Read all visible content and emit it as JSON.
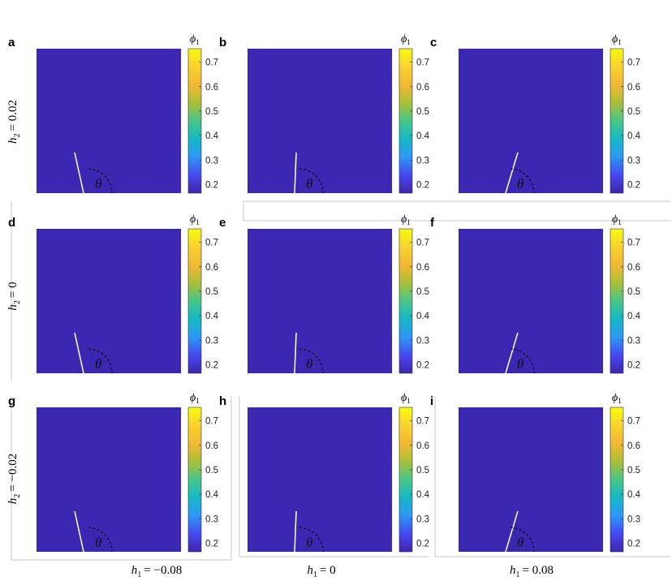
{
  "figure": {
    "colorbar": {
      "label": "ϕ1",
      "label_symbol": "ϕ",
      "label_subscript": "1",
      "ticks": [
        "0.7",
        "0.6",
        "0.5",
        "0.4",
        "0.3",
        "0.2"
      ],
      "colormap": [
        "#3e26a8",
        "#4748f2",
        "#2d97f5",
        "#15b8c8",
        "#47c78a",
        "#a9bf38",
        "#f3b934",
        "#f9d22f",
        "#f9fb0e"
      ],
      "background_color": "#3a28b2",
      "droplet_color": "#f6f043"
    },
    "angle_symbol": "θ",
    "row_labels": [
      {
        "lhs": "h",
        "sub": "2",
        "rhs": "= 0.02"
      },
      {
        "lhs": "h",
        "sub": "2",
        "rhs": "= 0"
      },
      {
        "lhs": "h",
        "sub": "2",
        "rhs": "= −0.02"
      }
    ],
    "col_labels": [
      {
        "lhs": "h",
        "sub": "1",
        "rhs": "= −0.08"
      },
      {
        "lhs": "h",
        "sub": "1",
        "rhs": "= 0"
      },
      {
        "lhs": "h",
        "sub": "1",
        "rhs": "= 0.08"
      }
    ],
    "panels": [
      {
        "letter": "a",
        "h1": "−0.08",
        "h2": "0.02"
      },
      {
        "letter": "b",
        "h1": "0",
        "h2": "0.02"
      },
      {
        "letter": "c",
        "h1": "0.08",
        "h2": "0.02"
      },
      {
        "letter": "d",
        "h1": "−0.08",
        "h2": "0"
      },
      {
        "letter": "e",
        "h1": "0",
        "h2": "0"
      },
      {
        "letter": "f",
        "h1": "0.08",
        "h2": "0"
      },
      {
        "letter": "g",
        "h1": "−0.08",
        "h2": "−0.02"
      },
      {
        "letter": "h",
        "h1": "0",
        "h2": "−0.02"
      },
      {
        "letter": "i",
        "h1": "0.08",
        "h2": "−0.02"
      }
    ]
  }
}
